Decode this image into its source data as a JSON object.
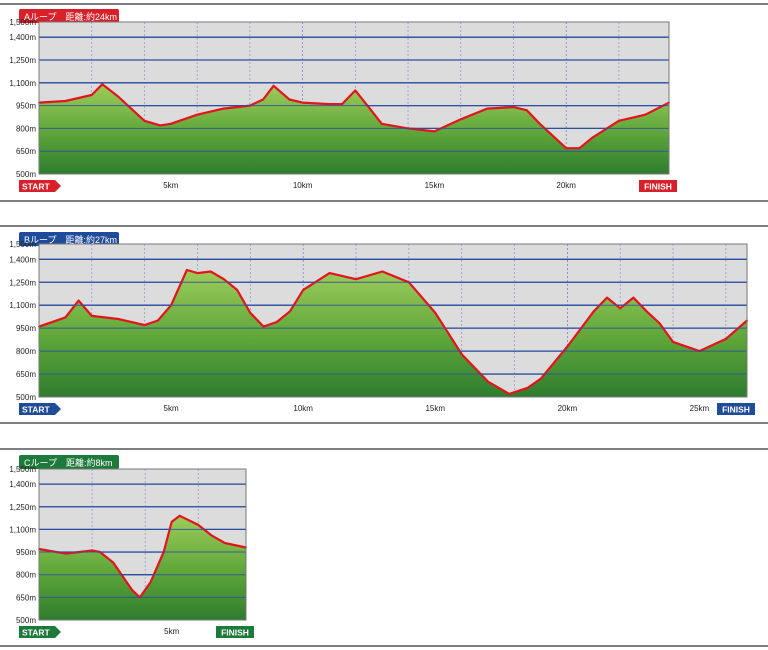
{
  "chart_data": [
    {
      "type": "area",
      "title": "Aループ　距離:約24km",
      "badge_color": "#d7202a",
      "y_ticks": [
        "1,500m",
        "1,400m",
        "1,250m",
        "1,100m",
        "950m",
        "800m",
        "650m",
        "500m"
      ],
      "x_ticks": [
        "5km",
        "10km",
        "15km",
        "20km"
      ],
      "start_label": "START",
      "finish_label": "FINISH",
      "ylim": [
        500,
        1500
      ],
      "xlim": [
        0,
        23.9
      ],
      "x": [
        0,
        1,
        2,
        2.4,
        3,
        4,
        4.6,
        5,
        6,
        7,
        8,
        8.5,
        8.9,
        9.5,
        10,
        11,
        11.5,
        12,
        12.6,
        13,
        14,
        15,
        16,
        17,
        18,
        18.5,
        19,
        20,
        20.5,
        21,
        22,
        23,
        23.9
      ],
      "values": [
        970,
        980,
        1020,
        1090,
        1010,
        850,
        820,
        830,
        890,
        930,
        950,
        990,
        1080,
        990,
        970,
        960,
        960,
        1050,
        920,
        830,
        800,
        780,
        860,
        930,
        940,
        920,
        830,
        670,
        670,
        740,
        850,
        890,
        970
      ]
    },
    {
      "type": "area",
      "title": "Bループ　距離:約27km",
      "badge_color": "#1e4c9a",
      "y_ticks": [
        "1,500m",
        "1,400m",
        "1,250m",
        "1,100m",
        "950m",
        "800m",
        "650m",
        "500m"
      ],
      "x_ticks": [
        "5km",
        "10km",
        "15km",
        "20km",
        "25km"
      ],
      "start_label": "START",
      "finish_label": "FINISH",
      "ylim": [
        500,
        1500
      ],
      "xlim": [
        0,
        26.8
      ],
      "x": [
        0,
        1,
        1.5,
        2,
        3,
        4,
        4.5,
        5,
        5.6,
        6,
        6.5,
        7,
        7.5,
        8,
        8.5,
        9,
        9.5,
        10,
        11,
        12,
        13,
        14,
        15,
        16,
        17,
        17.8,
        18.5,
        19,
        20,
        21,
        21.5,
        22,
        22.5,
        23,
        23.5,
        24,
        25,
        26,
        26.8
      ],
      "values": [
        960,
        1020,
        1130,
        1030,
        1010,
        970,
        1000,
        1100,
        1330,
        1310,
        1320,
        1270,
        1200,
        1050,
        960,
        990,
        1060,
        1200,
        1310,
        1270,
        1320,
        1250,
        1050,
        780,
        600,
        520,
        560,
        620,
        830,
        1060,
        1150,
        1080,
        1150,
        1060,
        980,
        860,
        800,
        880,
        1000
      ]
    },
    {
      "type": "area",
      "title": "Cループ　距離:約8km",
      "badge_color": "#1e7a3a",
      "y_ticks": [
        "1,500m",
        "1,400m",
        "1,250m",
        "1,100m",
        "950m",
        "800m",
        "650m",
        "500m"
      ],
      "x_ticks": [
        "5km"
      ],
      "start_label": "START",
      "finish_label": "FINISH",
      "ylim": [
        500,
        1500
      ],
      "xlim": [
        0,
        7.8
      ],
      "x": [
        0,
        1,
        2,
        2.3,
        2.8,
        3.5,
        3.8,
        4.2,
        4.7,
        5,
        5.3,
        6,
        6.5,
        7,
        7.8
      ],
      "values": [
        970,
        940,
        960,
        950,
        880,
        700,
        650,
        750,
        950,
        1150,
        1190,
        1130,
        1060,
        1010,
        980
      ]
    }
  ]
}
